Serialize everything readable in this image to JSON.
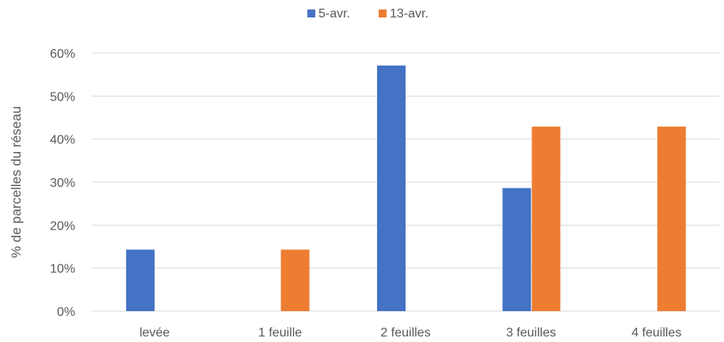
{
  "chart_data": {
    "type": "bar",
    "title": "",
    "xlabel": "",
    "ylabel": "% de parcelles du réseau",
    "categories": [
      "levée",
      "1 feuille",
      "2 feuilles",
      "3 feuilles",
      "4 feuilles"
    ],
    "series": [
      {
        "name": "5-avr.",
        "color": "#4472C4",
        "values": [
          14.3,
          0,
          57.1,
          28.6,
          0
        ]
      },
      {
        "name": "13-avr.",
        "color": "#ED7D31",
        "values": [
          0,
          14.3,
          0,
          42.9,
          42.9
        ]
      }
    ],
    "ylim": [
      0,
      60
    ],
    "yticks": [
      0,
      10,
      20,
      30,
      40,
      50,
      60
    ],
    "ytick_labels": [
      "0%",
      "10%",
      "20%",
      "30%",
      "40%",
      "50%",
      "60%"
    ],
    "grid": true,
    "legend_position": "top-center",
    "axis_color": "#d9d9d9",
    "grid_color": "#d9d9d9"
  }
}
